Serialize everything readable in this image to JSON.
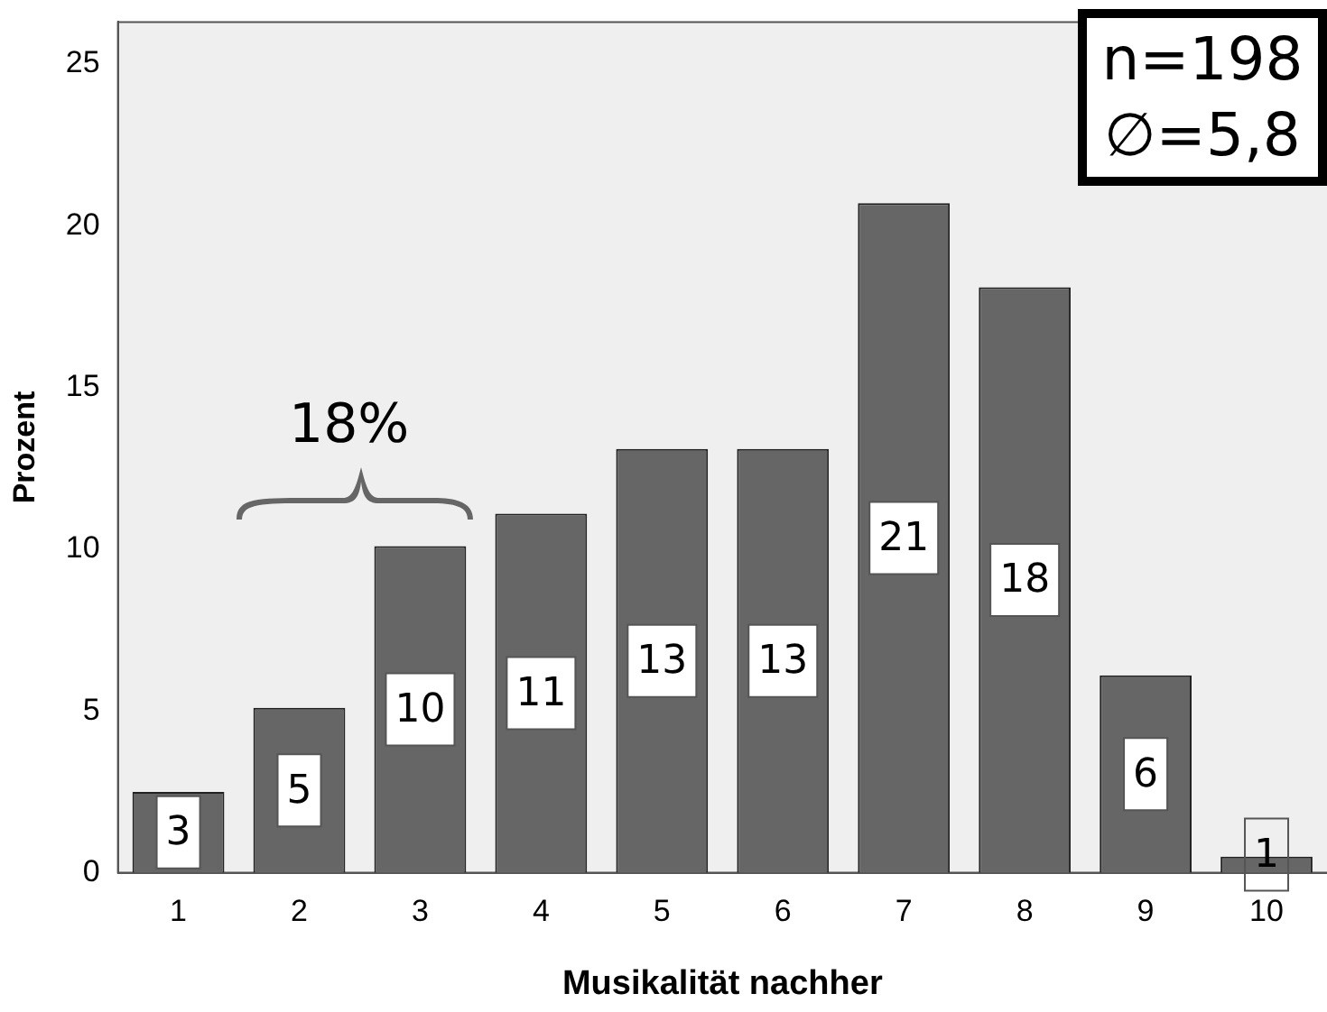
{
  "chart_data": {
    "type": "bar",
    "xlabel": "Musikalität nachher",
    "ylabel": "Prozent",
    "categories": [
      "1",
      "2",
      "3",
      "4",
      "5",
      "6",
      "7",
      "8",
      "9",
      "10"
    ],
    "values": [
      2.5,
      5.1,
      10.1,
      11.1,
      13.1,
      13.1,
      20.7,
      18.1,
      6.1,
      0.5
    ],
    "value_labels": [
      "3",
      "5",
      "10",
      "11",
      "13",
      "13",
      "21",
      "18",
      "6",
      "1"
    ],
    "color": "#666666",
    "ylim": [
      0,
      26.3
    ],
    "yticks": [
      0,
      5,
      10,
      15,
      20,
      25
    ],
    "grid": false,
    "annotations": [
      "18%",
      "n=198",
      "∅=5,8"
    ]
  }
}
